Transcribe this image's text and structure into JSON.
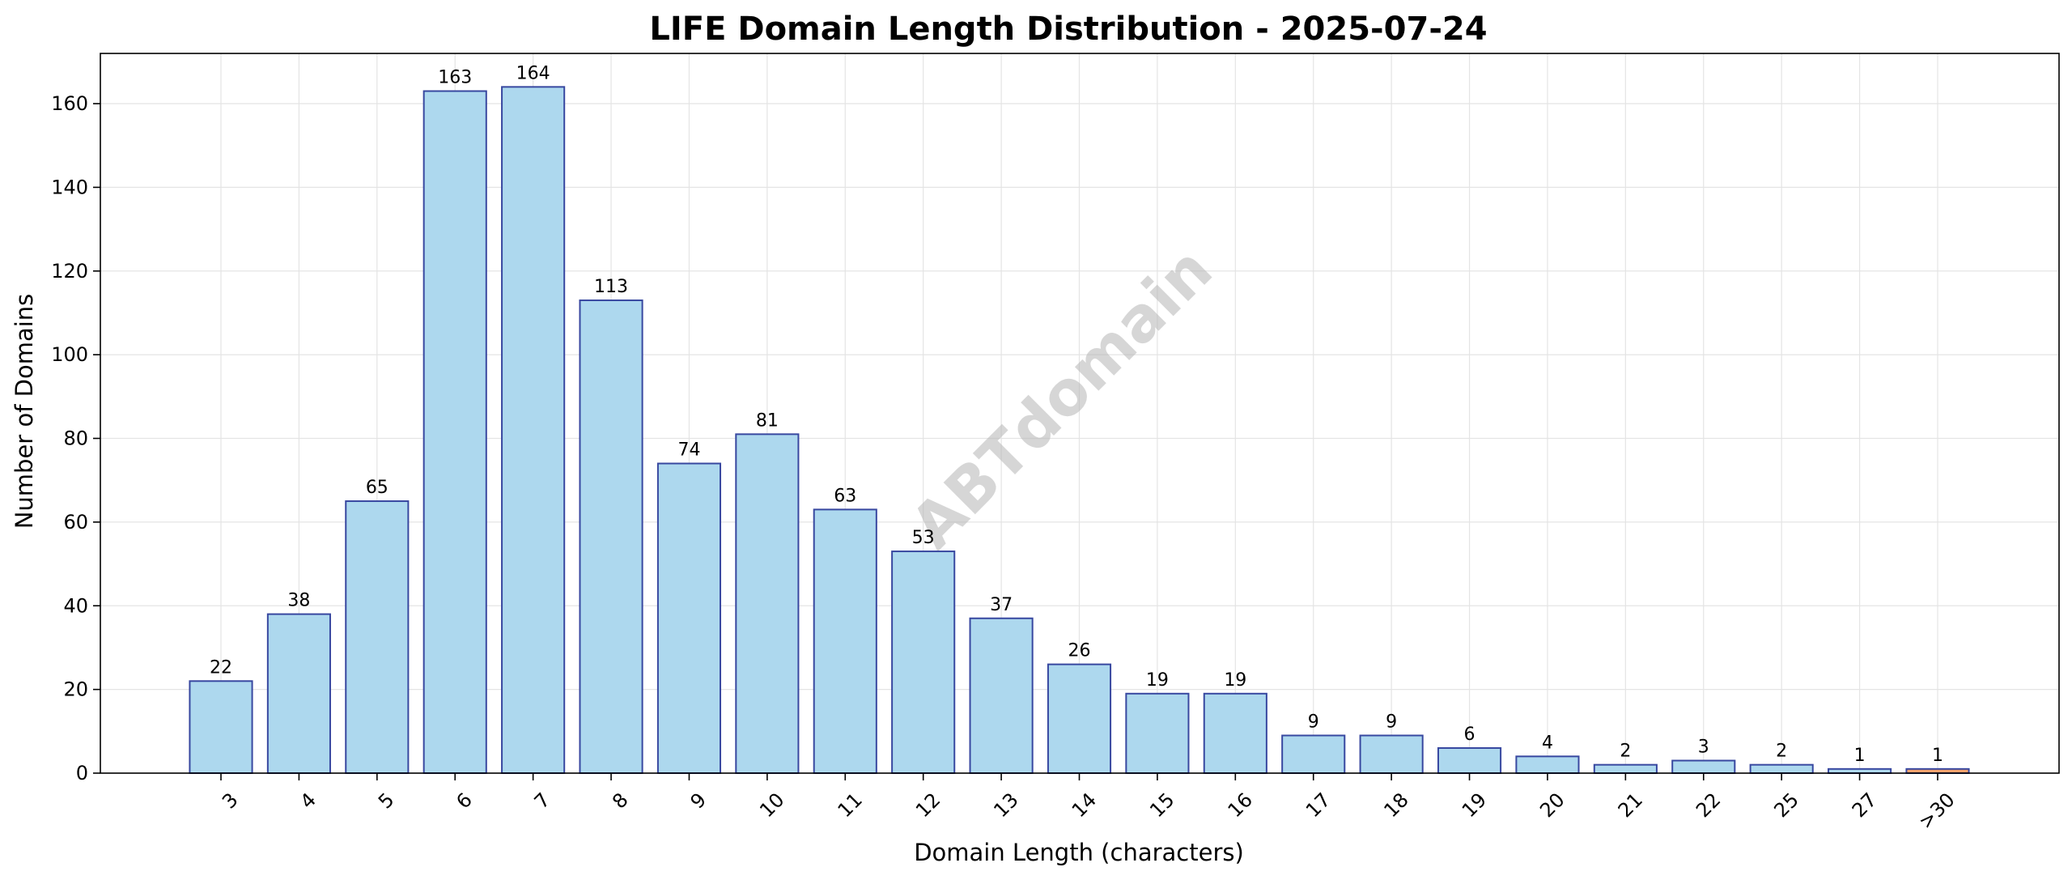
{
  "chart_data": {
    "type": "bar",
    "title": "LIFE Domain Length Distribution - 2025-07-24",
    "xlabel": "Domain Length (characters)",
    "ylabel": "Number of Domains",
    "categories": [
      "3",
      "4",
      "5",
      "6",
      "7",
      "8",
      "9",
      "10",
      "11",
      "12",
      "13",
      "14",
      "15",
      "16",
      "17",
      "18",
      "19",
      "20",
      "21",
      "22",
      "25",
      "27",
      ">30"
    ],
    "values": [
      22,
      38,
      65,
      163,
      164,
      113,
      74,
      81,
      63,
      53,
      37,
      26,
      19,
      19,
      9,
      9,
      6,
      4,
      2,
      3,
      2,
      1,
      1
    ],
    "ylim": [
      0,
      172
    ],
    "yticks": [
      0,
      20,
      40,
      60,
      80,
      100,
      120,
      140,
      160
    ],
    "grid": true,
    "data_labels": true,
    "x_tick_rotation": -45,
    "watermark": "ABTdomain",
    "colors": {
      "bar_fill": "#add8ee",
      "bar_edge": "#3848a0",
      "highlight_fill": "#f4a26e",
      "grid": "#e4e4e4",
      "axis": "#000000"
    },
    "highlight_categories": [
      ">30"
    ]
  }
}
